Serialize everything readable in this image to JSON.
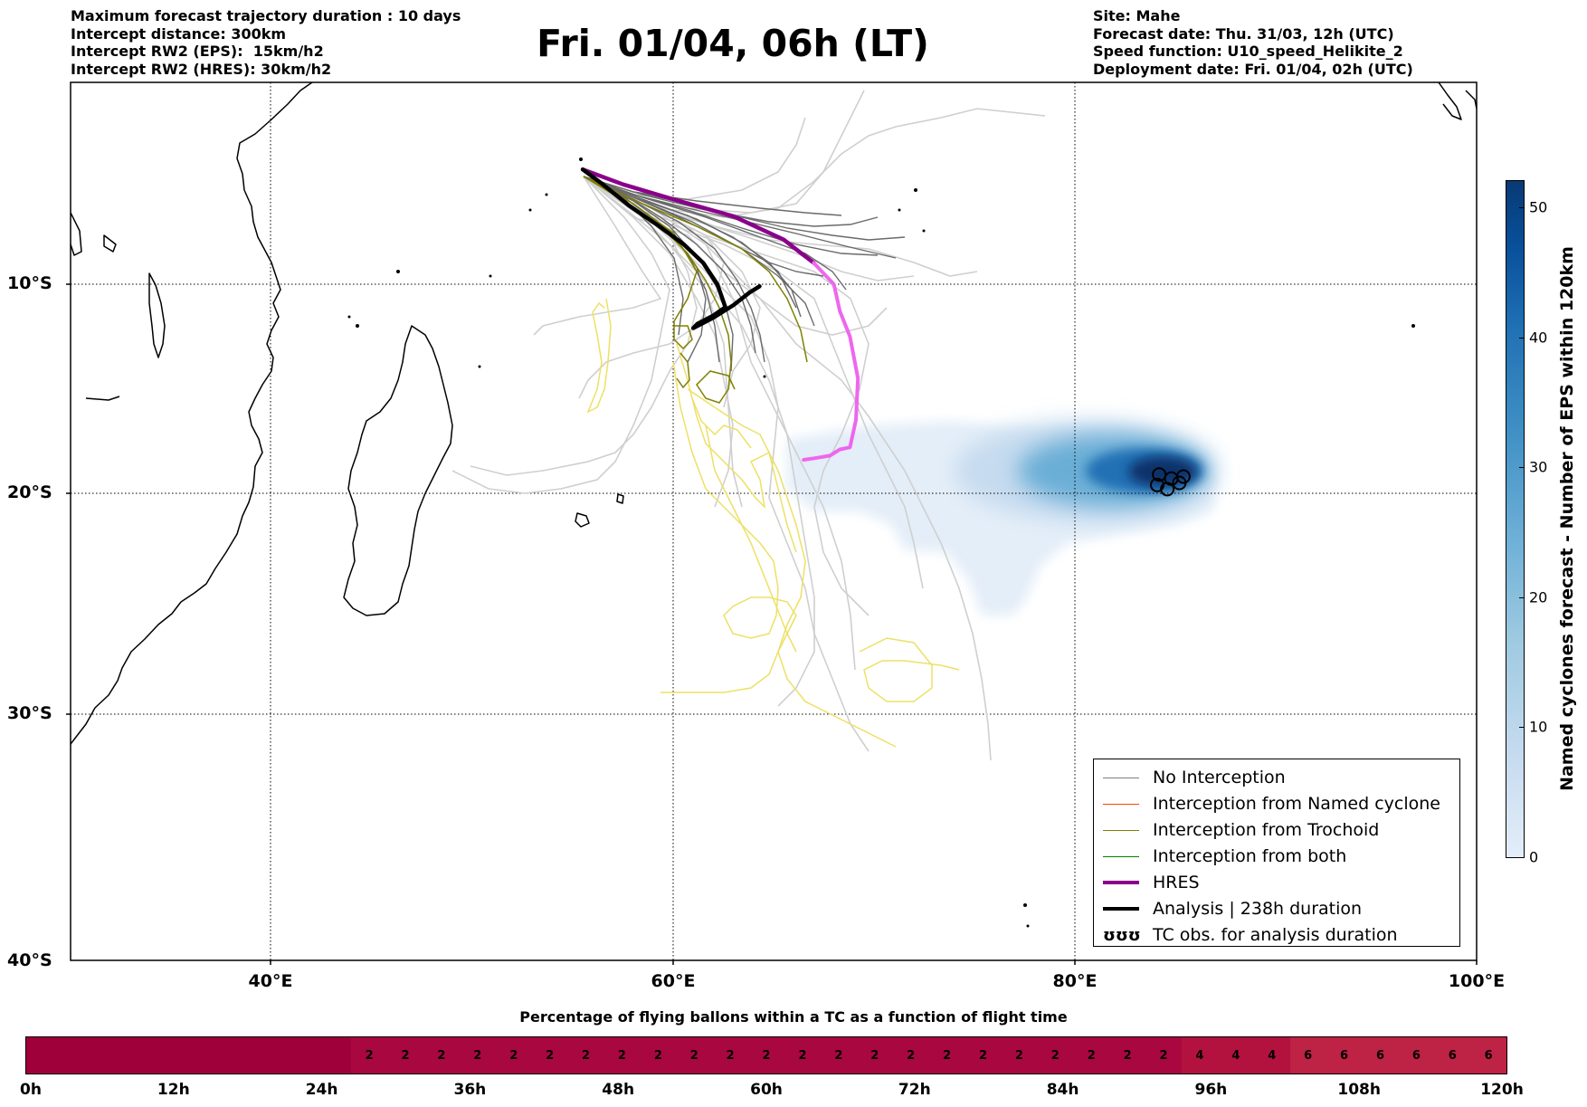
{
  "header": {
    "left": [
      "Maximum forecast trajectory duration : 10 days",
      "Intercept distance: 300km",
      "Intercept RW2 (EPS):  15km/h2",
      "Intercept RW2 (HRES): 30km/h2"
    ],
    "right": [
      "Site: Mahe",
      "Forecast date: Thu. 31/03, 12h (UTC)",
      "Speed function: U10_speed_Helikite_2",
      "Deployment date: Fri. 01/04, 02h (UTC)"
    ]
  },
  "title": "Fri. 01/04, 06h (LT)",
  "axes": {
    "lat_labels": [
      "10°S",
      "20°S",
      "30°S",
      "40°S"
    ],
    "lon_labels": [
      "40°E",
      "60°E",
      "80°E",
      "100°E"
    ]
  },
  "legend": {
    "items": [
      {
        "label": "No Interception",
        "color": "#808080"
      },
      {
        "label": "Interception from Named cyclone",
        "color": "#ff4500"
      },
      {
        "label": "Interception from Trochoid",
        "color": "#808000"
      },
      {
        "label": "Interception from both",
        "color": "#008000"
      },
      {
        "label": "HRES",
        "color": "#8b008b"
      },
      {
        "label": "Analysis | 238h duration",
        "color": "#000000"
      },
      {
        "label": "TC obs. for analysis duration",
        "symbol": "ʊʊʊ"
      }
    ]
  },
  "colorbar": {
    "label": "Named cyclones forecast - Number of EPS within 120km",
    "ticks": [
      "0",
      "10",
      "20",
      "30",
      "40",
      "50"
    ],
    "range": [
      0,
      52
    ]
  },
  "flight_bar": {
    "title": "Percentage of flying ballons within a TC as a function of flight time",
    "cells": [
      "",
      "",
      "",
      "",
      "",
      "",
      "",
      "",
      "",
      "2",
      "2",
      "2",
      "2",
      "2",
      "2",
      "2",
      "2",
      "2",
      "2",
      "2",
      "2",
      "2",
      "2",
      "2",
      "2",
      "2",
      "2",
      "2",
      "2",
      "2",
      "2",
      "2",
      "4",
      "4",
      "4",
      "6",
      "6",
      "6",
      "6",
      "6",
      "6"
    ],
    "cell_colors": {
      "0": "#a0003a",
      "2": "#a8073f",
      "4": "#b3123f",
      "6": "#be2244"
    },
    "tick_labels": [
      "0h",
      "12h",
      "24h",
      "36h",
      "48h",
      "60h",
      "72h",
      "84h",
      "96h",
      "108h",
      "120h"
    ]
  },
  "chart_data": {
    "type": "map",
    "lon_range": [
      30,
      100
    ],
    "lat_range": [
      -40,
      -0.5
    ],
    "hres_track": [
      [
        55.5,
        -4.6
      ],
      [
        57.5,
        -5.3
      ],
      [
        60,
        -6
      ],
      [
        63,
        -6.8
      ],
      [
        65.5,
        -7.9
      ],
      [
        67,
        -9
      ],
      [
        68,
        -10
      ],
      [
        68.3,
        -11.3
      ],
      [
        68.8,
        -12.5
      ],
      [
        69.2,
        -14.5
      ],
      [
        69.1,
        -16.5
      ],
      [
        68.8,
        -17.8
      ],
      [
        68.3,
        -17.9
      ],
      [
        67.8,
        -18.2
      ],
      [
        67.2,
        -18.3
      ],
      [
        66.5,
        -18.4
      ]
    ],
    "analysis_track": [
      [
        55.5,
        -4.6
      ],
      [
        56.5,
        -5.3
      ],
      [
        57.8,
        -6.3
      ],
      [
        59.2,
        -7.2
      ],
      [
        60.5,
        -8.1
      ],
      [
        61.5,
        -9
      ],
      [
        62.2,
        -10
      ],
      [
        62.6,
        -11.1
      ],
      [
        62,
        -11.5
      ],
      [
        61.2,
        -11.9
      ],
      [
        61,
        -12.1
      ],
      [
        62,
        -11.6
      ],
      [
        63,
        -11
      ],
      [
        63.8,
        -10.4
      ],
      [
        64.3,
        -10.1
      ]
    ],
    "tc_obs": [
      [
        84.2,
        -19.1
      ],
      [
        84.8,
        -19.3
      ],
      [
        85.2,
        -19.5
      ],
      [
        84.6,
        -19.8
      ],
      [
        85.4,
        -19.2
      ],
      [
        84.1,
        -19.6
      ]
    ]
  }
}
